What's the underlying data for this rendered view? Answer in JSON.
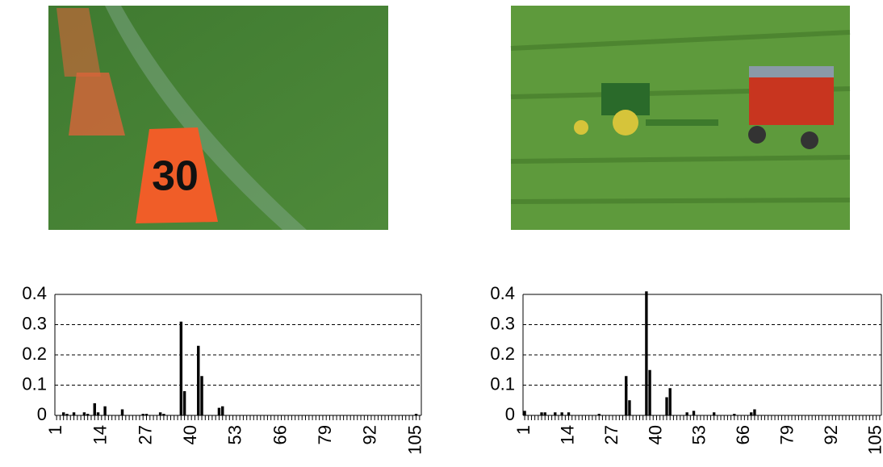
{
  "chart_data": [
    {
      "type": "bar",
      "categories": [
        1,
        null,
        null,
        null,
        null,
        null,
        null,
        null,
        null,
        null,
        null,
        null,
        null,
        14,
        null,
        null,
        null,
        null,
        null,
        null,
        null,
        null,
        null,
        null,
        null,
        null,
        27,
        null,
        null,
        null,
        null,
        null,
        null,
        null,
        null,
        null,
        null,
        null,
        null,
        40,
        null,
        null,
        null,
        null,
        null,
        null,
        null,
        null,
        null,
        null,
        null,
        null,
        53,
        null,
        null,
        null,
        null,
        null,
        null,
        null,
        null,
        null,
        null,
        null,
        null,
        66,
        null,
        null,
        null,
        null,
        null,
        null,
        null,
        null,
        null,
        null,
        null,
        null,
        79,
        null,
        null,
        null,
        null,
        null,
        null,
        null,
        null,
        null,
        null,
        null,
        null,
        92,
        null,
        null,
        null,
        null,
        null,
        null,
        null,
        null,
        null,
        null,
        null,
        null,
        105,
        null
      ],
      "values": [
        0,
        0,
        0.01,
        0.005,
        0,
        0.01,
        0,
        0,
        0.01,
        0.005,
        0,
        0.04,
        0.01,
        0,
        0.03,
        0,
        0,
        0,
        0,
        0.02,
        0,
        0,
        0,
        0,
        0,
        0.005,
        0.005,
        0,
        0,
        0,
        0.01,
        0.005,
        0,
        0,
        0,
        0,
        0.31,
        0.08,
        0,
        0,
        0,
        0.23,
        0.13,
        0,
        0,
        0,
        0,
        0.025,
        0.03,
        0,
        0,
        0,
        0,
        0,
        0,
        0,
        0,
        0,
        0,
        0,
        0,
        0,
        0,
        0,
        0,
        0,
        0,
        0,
        0,
        0,
        0,
        0,
        0,
        0,
        0,
        0,
        0,
        0,
        0,
        0,
        0,
        0,
        0,
        0,
        0,
        0,
        0,
        0,
        0,
        0,
        0,
        0,
        0,
        0,
        0,
        0,
        0,
        0,
        0,
        0,
        0,
        0,
        0,
        0,
        0.005,
        0
      ],
      "color": "#000000",
      "ylim": [
        0,
        0.4
      ],
      "yticks": [
        0,
        0.1,
        0.2,
        0.3,
        0.4
      ],
      "grid": true
    },
    {
      "type": "bar",
      "categories": [
        1,
        null,
        null,
        null,
        null,
        null,
        null,
        null,
        null,
        null,
        null,
        null,
        null,
        14,
        null,
        null,
        null,
        null,
        null,
        null,
        null,
        null,
        null,
        null,
        null,
        null,
        27,
        null,
        null,
        null,
        null,
        null,
        null,
        null,
        null,
        null,
        null,
        null,
        null,
        40,
        null,
        null,
        null,
        null,
        null,
        null,
        null,
        null,
        null,
        null,
        null,
        null,
        53,
        null,
        null,
        null,
        null,
        null,
        null,
        null,
        null,
        null,
        null,
        null,
        null,
        66,
        null,
        null,
        null,
        null,
        null,
        null,
        null,
        null,
        null,
        null,
        null,
        null,
        79,
        null,
        null,
        null,
        null,
        null,
        null,
        null,
        null,
        null,
        null,
        null,
        null,
        92,
        null,
        null,
        null,
        null,
        null,
        null,
        null,
        null,
        null,
        null,
        null,
        null,
        105,
        null
      ],
      "values": [
        0.015,
        0,
        0,
        0,
        0,
        0.01,
        0.01,
        0,
        0,
        0.01,
        0,
        0.01,
        0,
        0.01,
        0,
        0,
        0,
        0,
        0,
        0,
        0,
        0,
        0.005,
        0,
        0,
        0,
        0,
        0,
        0,
        0,
        0.13,
        0.05,
        0,
        0,
        0,
        0,
        0.41,
        0.15,
        0,
        0,
        0,
        0,
        0.06,
        0.09,
        0,
        0,
        0,
        0,
        0.01,
        0,
        0.015,
        0,
        0,
        0,
        0,
        0,
        0.01,
        0,
        0,
        0,
        0,
        0,
        0.005,
        0,
        0,
        0,
        0,
        0.01,
        0.02,
        0,
        0,
        0,
        0,
        0,
        0,
        0,
        0,
        0,
        0,
        0,
        0,
        0,
        0,
        0,
        0,
        0,
        0,
        0,
        0,
        0,
        0,
        0,
        0,
        0,
        0,
        0,
        0,
        0,
        0,
        0,
        0,
        0,
        0,
        0,
        0,
        0
      ],
      "color": "#000000",
      "ylim": [
        0,
        0.4
      ],
      "yticks": [
        0,
        0.1,
        0.2,
        0.3,
        0.4
      ],
      "grid": true
    }
  ]
}
